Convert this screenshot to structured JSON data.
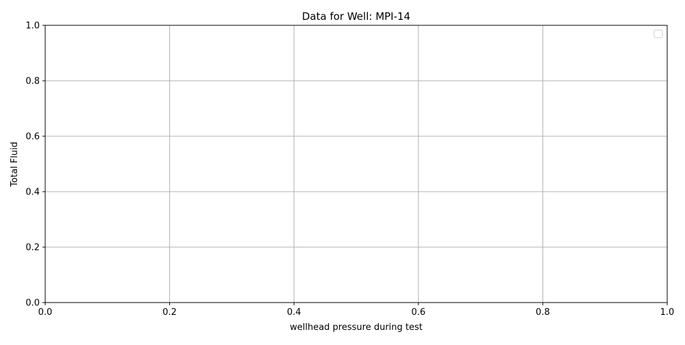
{
  "chart_data": {
    "type": "line",
    "title": "Data for Well: MPI-14",
    "xlabel": "wellhead pressure during test",
    "ylabel": "Total Fluid",
    "xlim": [
      0,
      1
    ],
    "ylim": [
      0,
      1
    ],
    "x_ticks": [
      0.0,
      0.2,
      0.4,
      0.6,
      0.8,
      1.0
    ],
    "y_ticks": [
      0.0,
      0.2,
      0.4,
      0.6,
      0.8,
      1.0
    ],
    "x_tick_labels": [
      "0.0",
      "0.2",
      "0.4",
      "0.6",
      "0.8",
      "1.0"
    ],
    "y_tick_labels": [
      "0.0",
      "0.2",
      "0.4",
      "0.6",
      "0.8",
      "1.0"
    ],
    "grid": true,
    "legend": {
      "position": "top-right",
      "entries": []
    },
    "series": [],
    "colors": {
      "grid": "#b0b0b0",
      "axes": "#000000",
      "background": "#ffffff"
    }
  }
}
